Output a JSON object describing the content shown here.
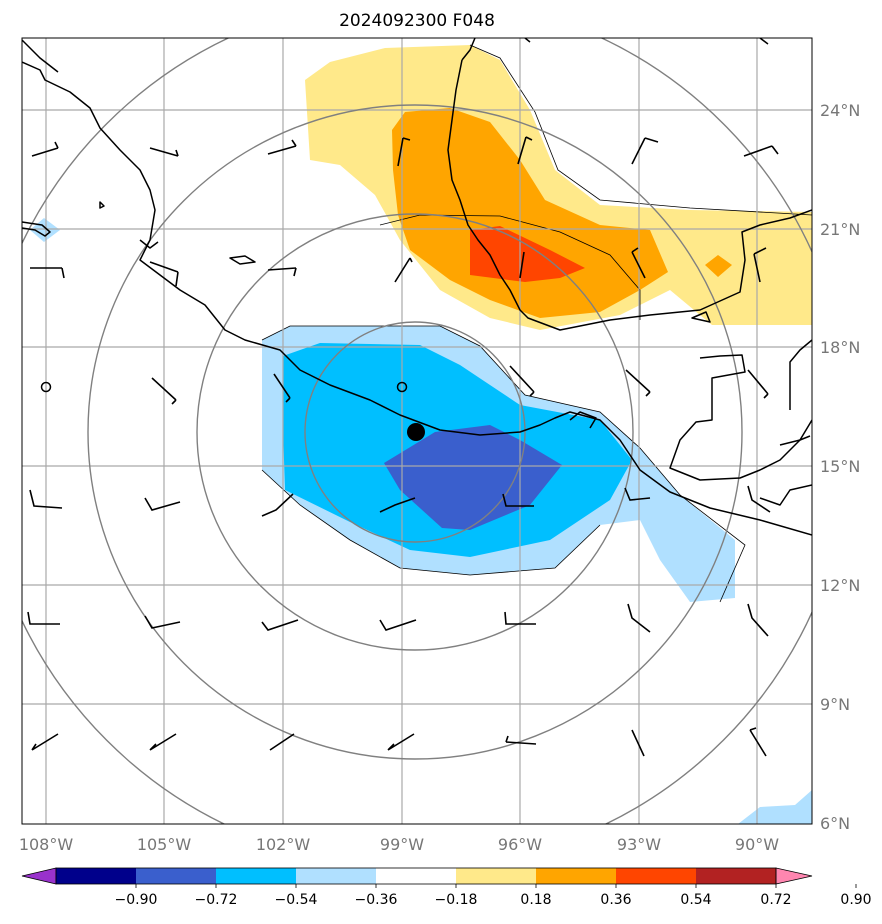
{
  "title": "2024092300 F048",
  "map": {
    "lat_labels": [
      "24°N",
      "21°N",
      "18°N",
      "15°N",
      "12°N",
      "9°N",
      "6°N"
    ],
    "lon_labels": [
      "108°W",
      "105°W",
      "102°W",
      "99°W",
      "96°W",
      "93°W",
      "90°W"
    ],
    "gridlines": true,
    "center_marker": "filled-circle"
  },
  "colorbar": {
    "labels": [
      "−0.90",
      "−0.72",
      "−0.54",
      "−0.36",
      "−0.18",
      "0.18",
      "0.36",
      "0.54",
      "0.72",
      "0.90"
    ],
    "colors": [
      "#9932cc",
      "#00008b",
      "#3a5fcd",
      "#00bfff",
      "#b0e0ff",
      "#ffffff",
      "#ffe98a",
      "#ffa500",
      "#ff4500",
      "#b22222",
      "#ff86b0"
    ],
    "extend": "both"
  }
}
